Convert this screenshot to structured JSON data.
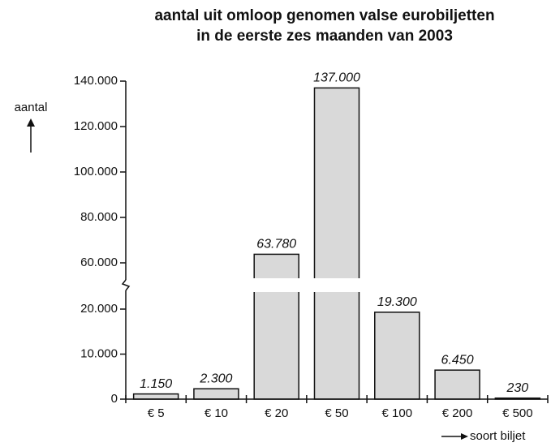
{
  "chart_data": {
    "type": "bar",
    "title": [
      "aantal uit omloop genomen valse eurobiljetten",
      "in de eerste zes maanden van 2003"
    ],
    "y_label": "aantal",
    "x_label": "soort biljet",
    "categories": [
      "€ 5",
      "€ 10",
      "€ 20",
      "€ 50",
      "€ 100",
      "€ 200",
      "€ 500"
    ],
    "values": [
      1150,
      2300,
      63780,
      137000,
      19300,
      6450,
      230
    ],
    "value_labels": [
      "1.150",
      "2.300",
      "63.780",
      "137.000",
      "19.300",
      "6.450",
      "230"
    ],
    "color": "#d9d9d9",
    "ylim": [
      0,
      140000
    ],
    "axis_break": [
      20000,
      60000
    ],
    "yticks": [
      0,
      {
        "value": 10000,
        "label": "10.000"
      },
      {
        "value": 20000,
        "label": "20.000"
      },
      {
        "value": 60000,
        "label": "60.000"
      },
      {
        "value": 80000,
        "label": "80.000"
      },
      {
        "value": 100000,
        "label": "100.000"
      },
      {
        "value": 120000,
        "label": "120.000"
      },
      {
        "value": 140000,
        "label": "140.000"
      }
    ]
  }
}
